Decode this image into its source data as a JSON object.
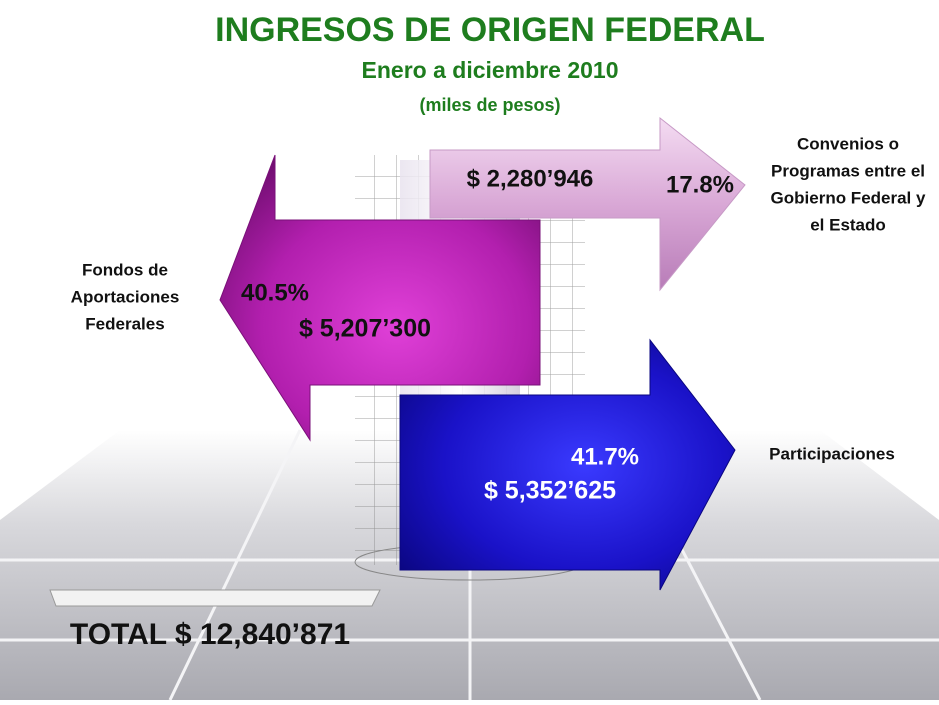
{
  "header": {
    "title": "INGRESOS DE ORIGEN FEDERAL",
    "subtitle": "Enero a diciembre 2010",
    "units": "(miles de pesos)"
  },
  "items": [
    {
      "label_lines": [
        "Convenios o",
        "Programas entre el",
        "Gobierno Federal y",
        "el Estado"
      ],
      "amount": "$ 2,280’946",
      "percent": "17.8%"
    },
    {
      "label_lines": [
        "Fondos de",
        "Aportaciones",
        "Federales"
      ],
      "amount": "$  5,207’300",
      "percent": "40.5%"
    },
    {
      "label_lines": [
        "Participaciones"
      ],
      "amount": "$  5,352’625",
      "percent": "41.7%"
    }
  ],
  "total": "TOTAL  $ 12,840’871"
}
